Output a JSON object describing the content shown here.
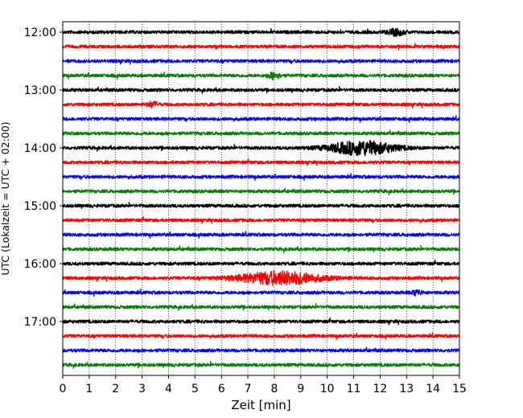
{
  "chart_data": {
    "type": "line",
    "xlabel": "Zeit  [min]",
    "ylabel": "UTC (Lokalzeit = UTC + 02:00)",
    "xlim": [
      0,
      15
    ],
    "xticks": [
      0,
      1,
      2,
      3,
      4,
      5,
      6,
      7,
      8,
      9,
      10,
      11,
      12,
      13,
      14,
      15
    ],
    "xtick_labels": [
      "0",
      "1",
      "2",
      "3",
      "4",
      "5",
      "6",
      "7",
      "8",
      "9",
      "10",
      "11",
      "12",
      "13",
      "14",
      "15"
    ],
    "ytick_labels": [
      "12:00",
      "13:00",
      "14:00",
      "15:00",
      "16:00",
      "17:00"
    ],
    "ytick_rows": [
      0,
      4,
      8,
      12,
      16,
      20
    ],
    "grid": "vertical-dotted",
    "row_interval_minutes": 15,
    "colors": [
      "#000000",
      "#ff0000",
      "#0000ff",
      "#008000"
    ],
    "traces": [
      {
        "start": "12:00",
        "color": "#000000",
        "events": [
          {
            "x": 12.6,
            "amp": 0.4,
            "width": 0.3
          }
        ]
      },
      {
        "start": "12:15",
        "color": "#ff0000",
        "events": []
      },
      {
        "start": "12:30",
        "color": "#0000ff",
        "events": []
      },
      {
        "start": "12:45",
        "color": "#008000",
        "events": [
          {
            "x": 8.0,
            "amp": 0.45,
            "width": 0.2
          }
        ]
      },
      {
        "start": "13:00",
        "color": "#000000",
        "events": []
      },
      {
        "start": "13:15",
        "color": "#ff0000",
        "events": [
          {
            "x": 3.4,
            "amp": 0.3,
            "width": 0.2
          }
        ]
      },
      {
        "start": "13:30",
        "color": "#0000ff",
        "events": []
      },
      {
        "start": "13:45",
        "color": "#008000",
        "events": []
      },
      {
        "start": "14:00",
        "color": "#000000",
        "events": [
          {
            "x": 11.3,
            "amp": 0.9,
            "width": 1.2
          }
        ]
      },
      {
        "start": "14:15",
        "color": "#ff0000",
        "events": []
      },
      {
        "start": "14:30",
        "color": "#0000ff",
        "events": []
      },
      {
        "start": "14:45",
        "color": "#008000",
        "events": []
      },
      {
        "start": "15:00",
        "color": "#000000",
        "events": []
      },
      {
        "start": "15:15",
        "color": "#ff0000",
        "events": []
      },
      {
        "start": "15:30",
        "color": "#0000ff",
        "events": []
      },
      {
        "start": "15:45",
        "color": "#008000",
        "events": []
      },
      {
        "start": "16:00",
        "color": "#000000",
        "events": []
      },
      {
        "start": "16:15",
        "color": "#ff0000",
        "events": [
          {
            "x": 8.2,
            "amp": 0.85,
            "width": 1.5
          }
        ]
      },
      {
        "start": "16:30",
        "color": "#0000ff",
        "events": [
          {
            "x": 13.4,
            "amp": 0.3,
            "width": 0.2
          }
        ]
      },
      {
        "start": "16:45",
        "color": "#008000",
        "events": []
      },
      {
        "start": "17:00",
        "color": "#000000",
        "events": []
      },
      {
        "start": "17:15",
        "color": "#ff0000",
        "events": []
      },
      {
        "start": "17:30",
        "color": "#0000ff",
        "events": []
      },
      {
        "start": "17:45",
        "color": "#008000",
        "events": []
      }
    ]
  }
}
